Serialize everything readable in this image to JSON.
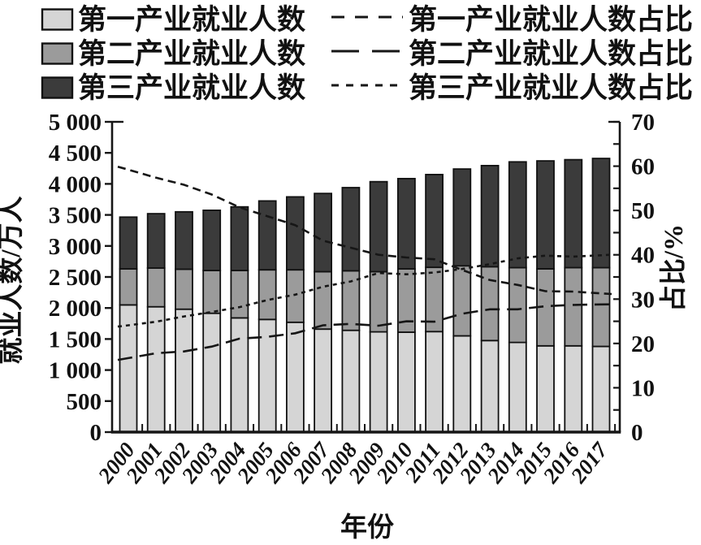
{
  "chart_data": {
    "type": "bar",
    "stacked": true,
    "title": "",
    "categories": [
      "2000",
      "2001",
      "2002",
      "2003",
      "2004",
      "2005",
      "2006",
      "2007",
      "2008",
      "2009",
      "2010",
      "2011",
      "2012",
      "2013",
      "2014",
      "2015",
      "2016",
      "2017"
    ],
    "bar_series": [
      {
        "name": "第一产业就业人数",
        "color": "#d5d5d5",
        "values": [
          2050,
          2020,
          1980,
          1915,
          1840,
          1815,
          1770,
          1660,
          1640,
          1615,
          1610,
          1620,
          1550,
          1475,
          1445,
          1390,
          1390,
          1380
        ]
      },
      {
        "name": "第二产业就业人数",
        "color": "#9b9b9b",
        "values": [
          580,
          625,
          645,
          690,
          765,
          800,
          845,
          925,
          960,
          970,
          1020,
          1035,
          1130,
          1190,
          1205,
          1240,
          1260,
          1270
        ]
      },
      {
        "name": "第三产业就业人数",
        "color": "#3b3b3b",
        "values": [
          835,
          875,
          925,
          970,
          1025,
          1110,
          1175,
          1260,
          1340,
          1450,
          1455,
          1495,
          1560,
          1630,
          1705,
          1740,
          1740,
          1760
        ]
      }
    ],
    "line_series": [
      {
        "name": "第一产业就业人数占比",
        "dash": "10 6",
        "legend_dash": "16 13",
        "values": [
          59.2,
          57.4,
          55.8,
          53.6,
          50.7,
          48.7,
          46.7,
          43.2,
          41.6,
          40.0,
          39.4,
          39.0,
          36.6,
          34.3,
          33.2,
          31.8,
          31.7,
          31.3
        ]
      },
      {
        "name": "第二产业就业人数占比",
        "dash": "18 9",
        "legend_dash": "34 16",
        "values": [
          16.7,
          17.8,
          18.2,
          19.3,
          21.1,
          21.5,
          22.3,
          24.1,
          24.4,
          24.0,
          25.0,
          24.9,
          26.7,
          27.7,
          27.7,
          28.4,
          28.7,
          28.8
        ]
      },
      {
        "name": "第三产业就业人数占比",
        "dash": "5 5",
        "legend_dash": "9 9",
        "values": [
          24.1,
          24.9,
          26.1,
          27.1,
          28.2,
          29.8,
          31.0,
          32.8,
          34.0,
          35.9,
          35.6,
          36.0,
          36.8,
          37.9,
          39.2,
          39.8,
          39.6,
          39.9
        ]
      }
    ],
    "left_axis": {
      "label": "就业人数/万人",
      "min": 0,
      "max": 5000,
      "tick_step": 500,
      "tick_labels": [
        "0",
        "500",
        "1 000",
        "1 500",
        "2 000",
        "2 500",
        "3 000",
        "3 500",
        "4 000",
        "4 500",
        "5 000"
      ]
    },
    "right_axis": {
      "label": "占比/%",
      "min": 0,
      "max": 70,
      "tick_step": 10,
      "minor_tick_step": 5,
      "tick_labels": [
        "0",
        "10",
        "20",
        "30",
        "40",
        "50",
        "60",
        "70"
      ]
    },
    "x_axis": {
      "label": "年份"
    },
    "line_color": "#161616",
    "axis_color": "#161616",
    "grid": false,
    "legend_position": "top"
  }
}
